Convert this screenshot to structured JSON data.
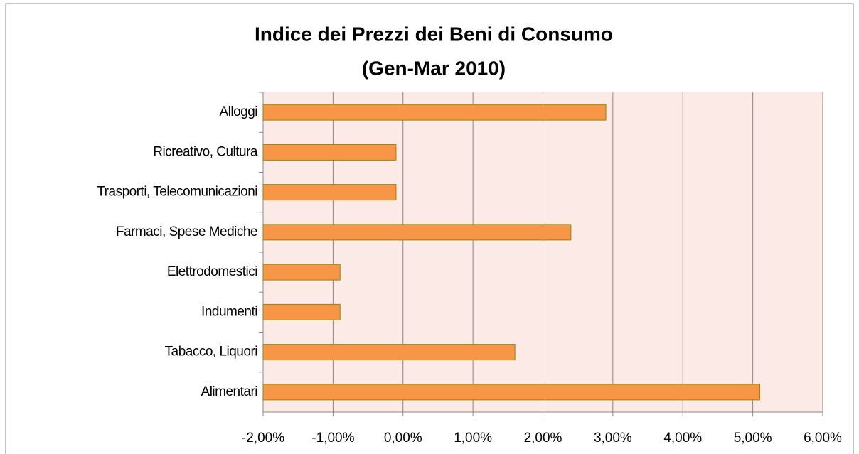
{
  "chart_data": {
    "type": "barh",
    "title": "Indice dei Prezzi dei Beni di Consumo",
    "subtitle": "(Gen-Mar 2010)",
    "categories": [
      "Alloggi",
      "Ricreativo, Cultura",
      "Trasporti, Telecomunicazioni",
      "Farmaci, Spese Mediche",
      "Elettrodomestici",
      "Indumenti",
      "Tabacco, Liquori",
      "Alimentari"
    ],
    "values": [
      2.9,
      -0.1,
      -0.1,
      2.4,
      -0.9,
      -0.9,
      1.6,
      5.1
    ],
    "color": "#f79646",
    "xlim": [
      -2,
      6
    ],
    "xticks": [
      {
        "value": -2,
        "label": "-2,00%"
      },
      {
        "value": -1,
        "label": "-1,00%"
      },
      {
        "value": 0,
        "label": "0,00%"
      },
      {
        "value": 1,
        "label": "1,00%"
      },
      {
        "value": 2,
        "label": "2,00%"
      },
      {
        "value": 3,
        "label": "3,00%"
      },
      {
        "value": 4,
        "label": "4,00%"
      },
      {
        "value": 5,
        "label": "5,00%"
      },
      {
        "value": 6,
        "label": "6,00%"
      }
    ],
    "grid": true
  }
}
